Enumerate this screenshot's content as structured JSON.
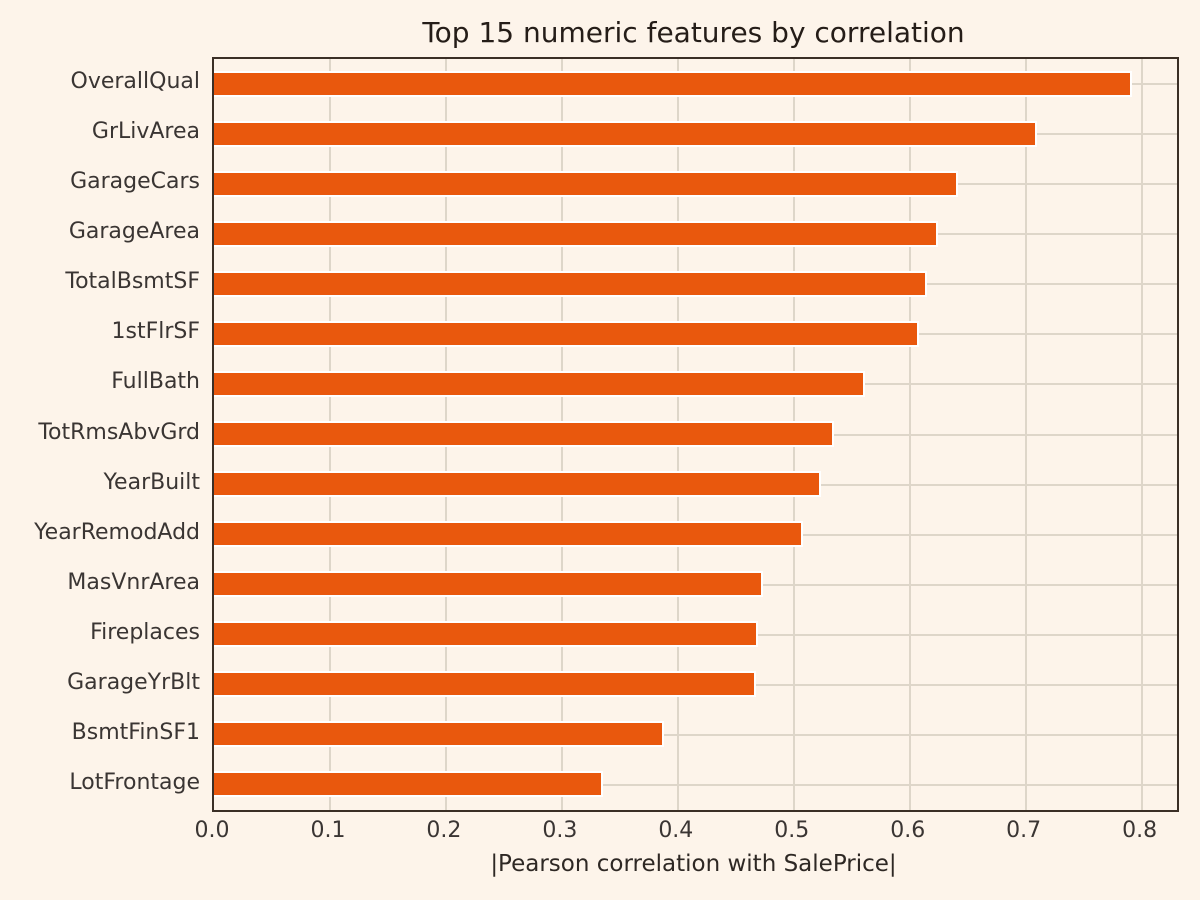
{
  "title": "Top 15 numeric features by correlation",
  "xlabel": "|Pearson correlation with SalePrice|",
  "chart_data": {
    "type": "bar",
    "orientation": "horizontal",
    "title": "Top 15 numeric features by correlation",
    "xlabel": "|Pearson correlation with SalePrice|",
    "ylabel": "",
    "categories": [
      "OverallQual",
      "GrLivArea",
      "GarageCars",
      "GarageArea",
      "TotalBsmtSF",
      "1stFlrSF",
      "FullBath",
      "TotRmsAbvGrd",
      "YearBuilt",
      "YearRemodAdd",
      "MasVnrArea",
      "Fireplaces",
      "GarageYrBlt",
      "BsmtFinSF1",
      "LotFrontage"
    ],
    "values": [
      0.79,
      0.708,
      0.64,
      0.623,
      0.613,
      0.606,
      0.56,
      0.533,
      0.522,
      0.506,
      0.472,
      0.467,
      0.466,
      0.386,
      0.334
    ],
    "xticks": [
      0.0,
      0.1,
      0.2,
      0.3,
      0.4,
      0.5,
      0.6,
      0.7,
      0.8
    ],
    "xlim": [
      0,
      0.8305
    ],
    "grid": true,
    "legend": false,
    "colors": {
      "background": "#fdf4ea",
      "bar": "#e9580d",
      "bar_edge": "#ffffff",
      "grid": "#ded6c9",
      "spine": "#3b2f26",
      "tick_text": "#3a3533",
      "title_text": "#251d18"
    }
  }
}
